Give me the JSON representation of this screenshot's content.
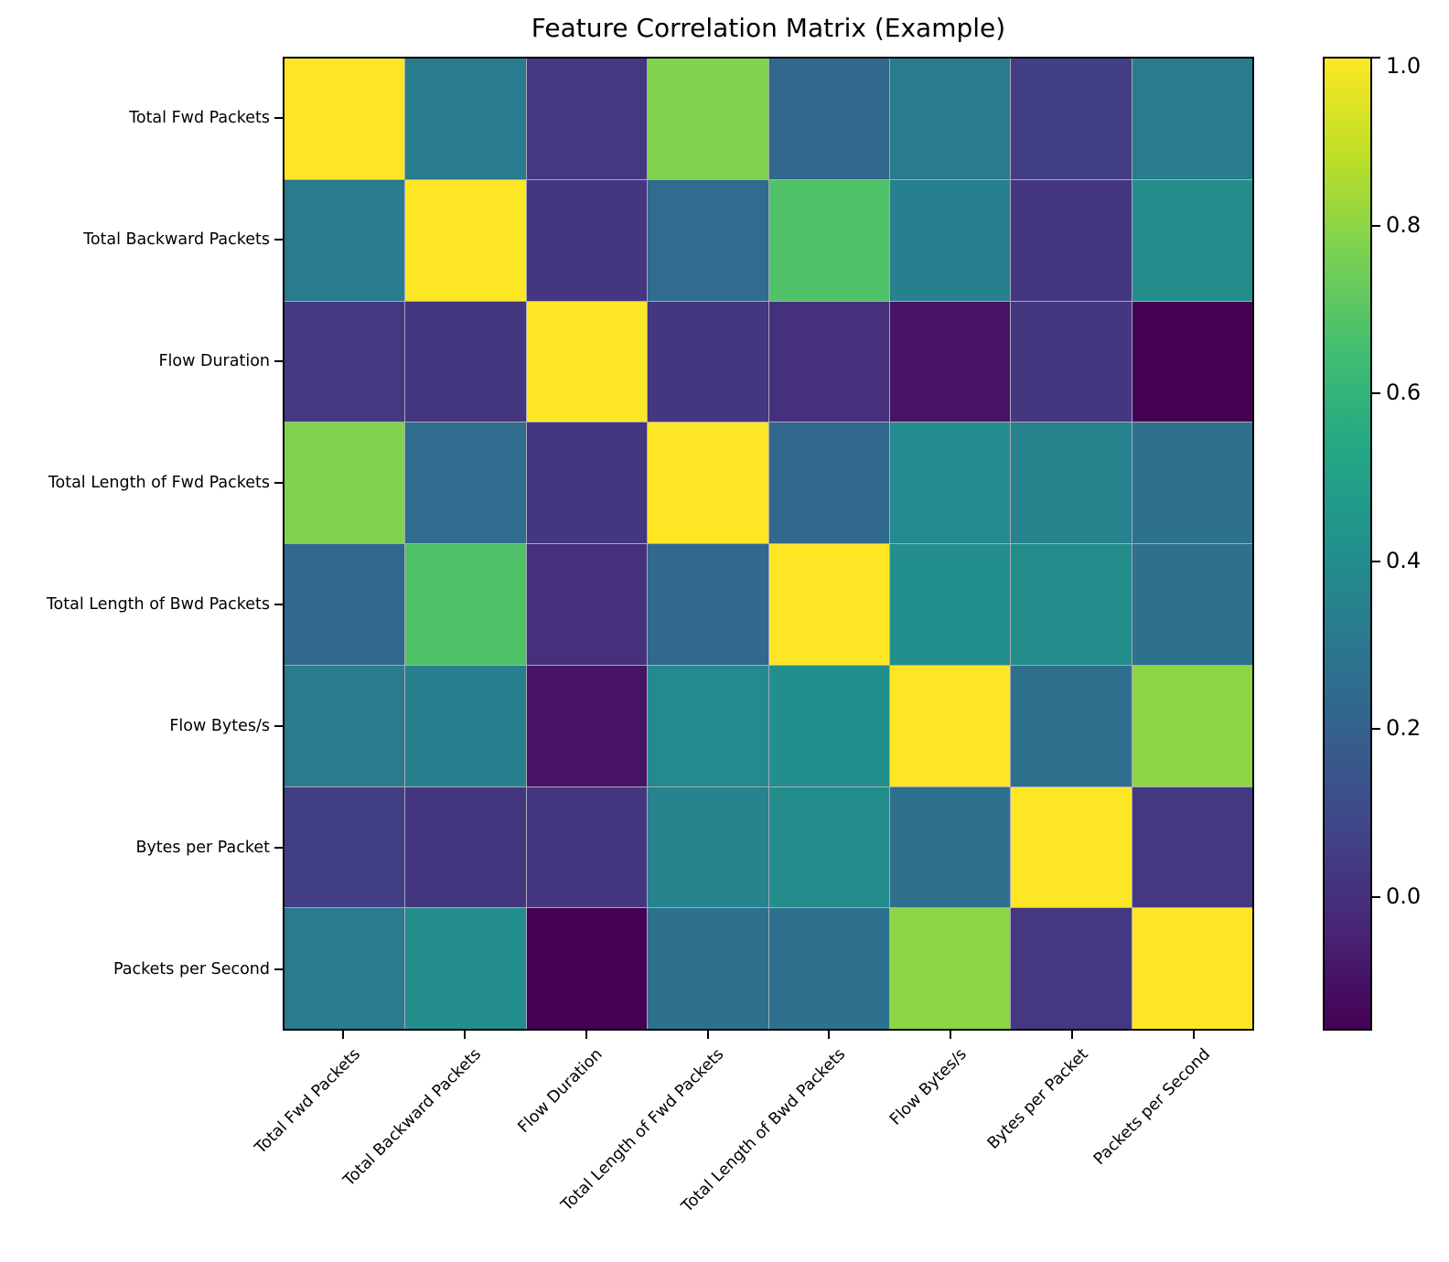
{
  "title": "Feature Correlation Matrix (Example)",
  "chart_data": {
    "type": "heatmap",
    "title": "Feature Correlation Matrix (Example)",
    "x_labels": [
      "Total Fwd Packets",
      "Total Backward Packets",
      "Flow Duration",
      "Total Length of Fwd Packets",
      "Total Length of Bwd Packets",
      "Flow Bytes/s",
      "Bytes per Packet",
      "Packets per Second"
    ],
    "y_labels": [
      "Total Fwd Packets",
      "Total Backward Packets",
      "Flow Duration",
      "Total Length of Fwd Packets",
      "Total Length of Bwd Packets",
      "Flow Bytes/s",
      "Bytes per Packet",
      "Packets per Second"
    ],
    "matrix": [
      [
        1.0,
        0.32,
        0.03,
        0.78,
        0.23,
        0.32,
        0.05,
        0.32
      ],
      [
        0.32,
        1.0,
        0.02,
        0.25,
        0.68,
        0.34,
        0.02,
        0.4
      ],
      [
        0.03,
        0.02,
        1.0,
        0.02,
        0.0,
        -0.1,
        0.02,
        -0.16
      ],
      [
        0.78,
        0.25,
        0.02,
        1.0,
        0.23,
        0.39,
        0.35,
        0.27
      ],
      [
        0.23,
        0.68,
        0.0,
        0.23,
        1.0,
        0.41,
        0.4,
        0.27
      ],
      [
        0.32,
        0.34,
        -0.1,
        0.39,
        0.41,
        1.0,
        0.26,
        0.8
      ],
      [
        0.05,
        0.02,
        0.02,
        0.35,
        0.4,
        0.26,
        1.0,
        0.03
      ],
      [
        0.32,
        0.4,
        -0.16,
        0.27,
        0.27,
        0.8,
        0.03,
        1.0
      ]
    ],
    "vmin": -0.16,
    "vmax": 1.0,
    "colormap": "viridis",
    "colorbar_ticks": [
      {
        "value": 1.0,
        "label": "1.0"
      },
      {
        "value": 0.8,
        "label": "0.8"
      },
      {
        "value": 0.6,
        "label": "0.6"
      },
      {
        "value": 0.4,
        "label": "0.4"
      },
      {
        "value": 0.2,
        "label": "0.2"
      },
      {
        "value": 0.0,
        "label": "0.0"
      }
    ],
    "x_tick_rotation": 45,
    "grid": true,
    "legend_position": "right-colorbar"
  },
  "colors": {
    "background": "#ffffff",
    "text": "#000000",
    "cell_gridline": "#a9a9bb",
    "axis_spine": "#000000",
    "viridis_stops": [
      [
        0.0,
        "#440154"
      ],
      [
        0.1,
        "#482475"
      ],
      [
        0.2,
        "#414487"
      ],
      [
        0.3,
        "#355f8d"
      ],
      [
        0.4,
        "#2a788e"
      ],
      [
        0.5,
        "#21918c"
      ],
      [
        0.6,
        "#22a884"
      ],
      [
        0.7,
        "#42be71"
      ],
      [
        0.8,
        "#7ad151"
      ],
      [
        0.9,
        "#bddf26"
      ],
      [
        1.0,
        "#fde725"
      ]
    ]
  }
}
